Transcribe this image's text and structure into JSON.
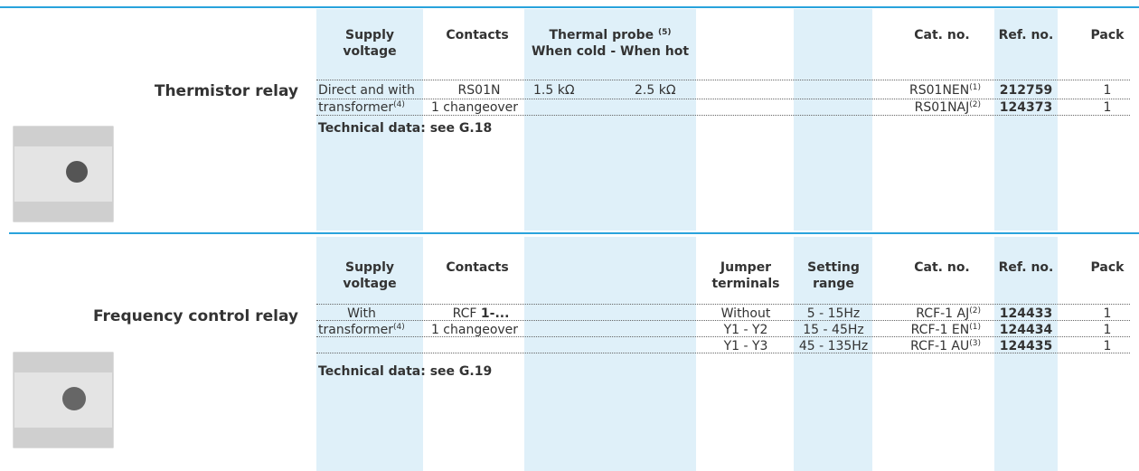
{
  "sections": [
    {
      "title": "Thermistor relay",
      "headers": {
        "supply": "Supply voltage",
        "contacts": "Contacts",
        "probe": "Thermal probe",
        "probe_note": "(5)",
        "probe_sub": "When cold - When hot",
        "cat": "Cat. no.",
        "ref": "Ref. no.",
        "pack": "Pack"
      },
      "supply": [
        "Direct and with",
        "transformer"
      ],
      "supply_note": "(4)",
      "contacts": [
        "RS01N",
        "1 changeover"
      ],
      "probe": [
        "1.5 kΩ",
        "2.5 kΩ"
      ],
      "rows": [
        {
          "cat": "RS01NEN",
          "note": "(1)",
          "ref": "212759",
          "pack": 1
        },
        {
          "cat": "RS01NAJ",
          "note": "(2)",
          "ref": "124373",
          "pack": 1
        }
      ],
      "technical": "Technical data: see G.18"
    },
    {
      "title": "Frequency control relay",
      "headers": {
        "supply": "Supply voltage",
        "contacts": "Contacts",
        "jumper": "Jumper terminals",
        "range": "Setting range",
        "cat": "Cat. no.",
        "ref": "Ref. no.",
        "pack": "Pack"
      },
      "supply": [
        "With",
        "transformer"
      ],
      "supply_note": "(4)",
      "contacts_prefix": "RCF",
      "contacts_bold": "1-...",
      "contacts_line2": "1 changeover",
      "rows": [
        {
          "jumper": "Without",
          "range": "5 - 15Hz",
          "cat": "RCF-1 AJ",
          "note": "(2)",
          "ref": "124433",
          "pack": 1
        },
        {
          "jumper": "Y1 - Y2",
          "range": "15 - 45Hz",
          "cat": "RCF-1 EN",
          "note": "(1)",
          "ref": "124434",
          "pack": 1
        },
        {
          "jumper": "Y1 - Y3",
          "range": "45 - 135Hz",
          "cat": "RCF-1 AU",
          "note": "(3)",
          "ref": "124435",
          "pack": 1
        }
      ],
      "technical": "Technical data: see G.19"
    }
  ]
}
